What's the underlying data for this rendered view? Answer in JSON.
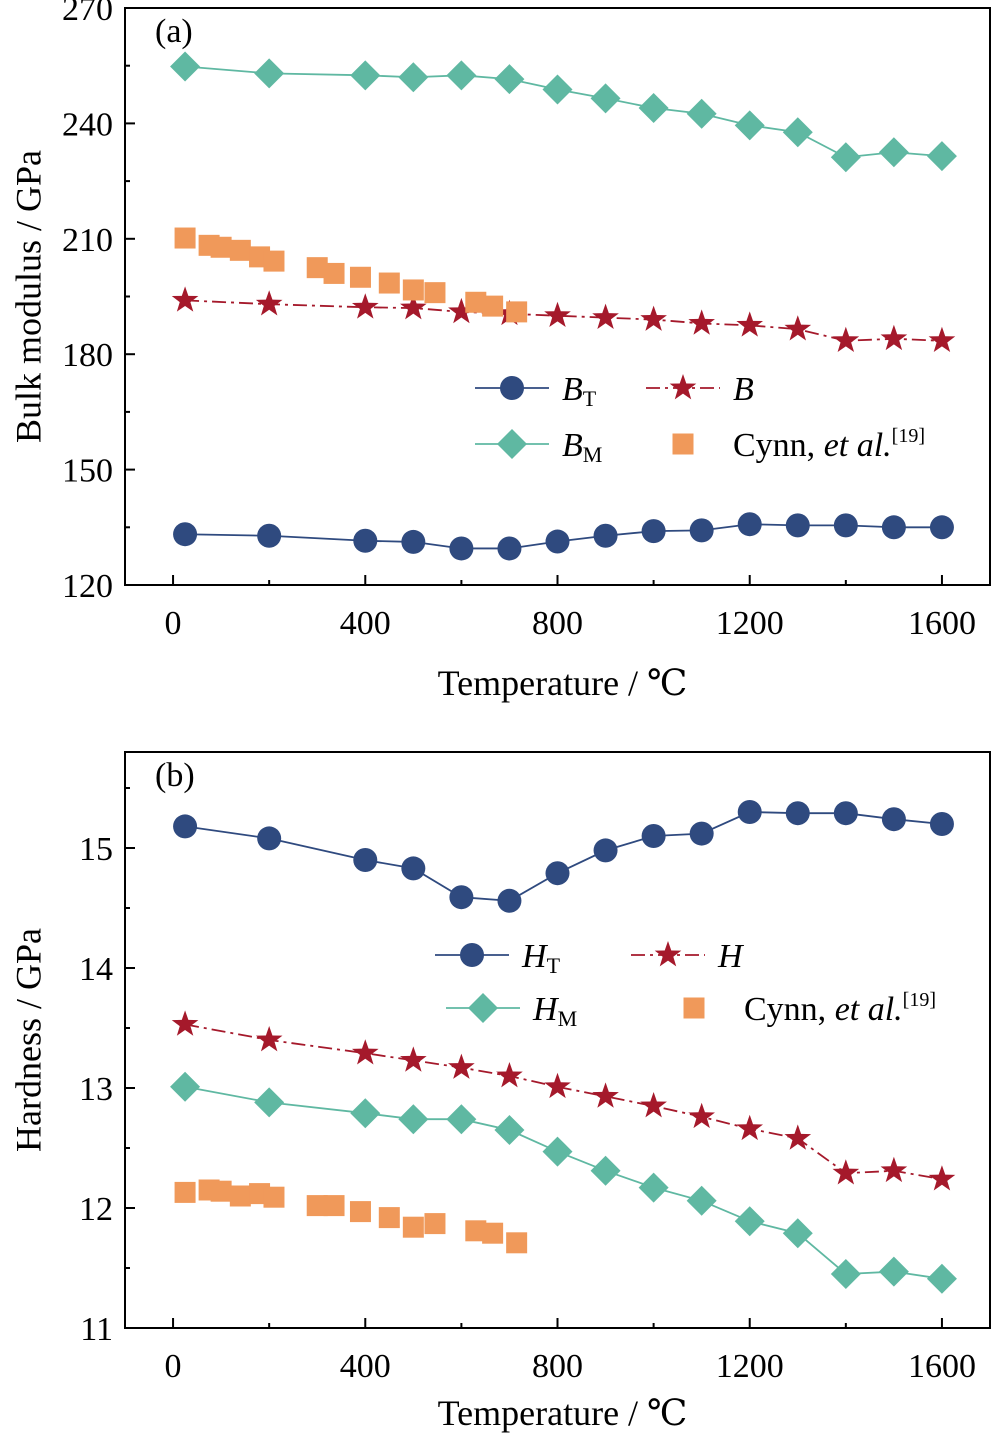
{
  "colors": {
    "BT": "#2f4a7f",
    "B": "#a5192b",
    "BM": "#5fb8a2",
    "cynn": "#f0995a",
    "axis": "#000000"
  },
  "chart_data": [
    {
      "type": "line",
      "panel_label": "(a)",
      "xlabel": "Temperature / ℃",
      "ylabel": "Bulk modulus / GPa",
      "xlim": [
        -100,
        1700
      ],
      "ylim": [
        120,
        270
      ],
      "xticks": [
        0,
        400,
        800,
        1200,
        1600
      ],
      "yticks": [
        120,
        150,
        180,
        210,
        240,
        270
      ],
      "legend_placement": "center-right",
      "series": [
        {
          "key": "BT",
          "marker": "circle",
          "line": "solid",
          "color_key": "BT",
          "legend": {
            "main": "B",
            "sub": "T",
            "italic": true
          },
          "x": [
            25,
            200,
            400,
            500,
            600,
            700,
            800,
            900,
            1000,
            1100,
            1200,
            1300,
            1400,
            1500,
            1600
          ],
          "y": [
            133.2,
            132.8,
            131.5,
            131.2,
            129.5,
            129.5,
            131.3,
            132.8,
            134,
            134.2,
            135.8,
            135.5,
            135.5,
            135,
            135
          ]
        },
        {
          "key": "B",
          "marker": "star",
          "line": "dashdot",
          "color_key": "B",
          "legend": {
            "main": "B",
            "sub": "",
            "italic": true
          },
          "x": [
            25,
            200,
            400,
            500,
            600,
            700,
            800,
            900,
            1000,
            1100,
            1200,
            1300,
            1400,
            1500,
            1600
          ],
          "y": [
            194,
            193,
            192.2,
            192,
            191,
            190.5,
            190,
            189.5,
            189,
            188,
            187.5,
            186.5,
            183.5,
            184,
            183.5
          ]
        },
        {
          "key": "BM",
          "marker": "diamond",
          "line": "solid",
          "color_key": "BM",
          "legend": {
            "main": "B",
            "sub": "M",
            "italic": true
          },
          "x": [
            25,
            200,
            400,
            500,
            600,
            700,
            800,
            900,
            1000,
            1100,
            1200,
            1300,
            1400,
            1500,
            1600
          ],
          "y": [
            254.8,
            253,
            252.5,
            252,
            252.5,
            251.5,
            248.8,
            246.5,
            244,
            242.5,
            239.5,
            237.7,
            231.2,
            232.5,
            231.5
          ]
        },
        {
          "key": "cynn",
          "marker": "square",
          "line": "none",
          "color_key": "cynn",
          "legend": {
            "main": "Cynn, ",
            "italic_part": "et al.",
            "sup": "[19]"
          },
          "x": [
            25,
            75,
            100,
            140,
            180,
            210,
            300,
            335,
            390,
            450,
            500,
            545,
            630,
            665,
            715
          ],
          "y": [
            210.2,
            208.3,
            207.8,
            207,
            205.3,
            204.2,
            202.5,
            201,
            200,
            198.5,
            196.7,
            196,
            193.5,
            192.5,
            191
          ]
        }
      ]
    },
    {
      "type": "line",
      "panel_label": "(b)",
      "xlabel": "Temperature / ℃",
      "ylabel": "Hardness / GPa",
      "xlim": [
        -100,
        1700
      ],
      "ylim": [
        11,
        15.8
      ],
      "xticks": [
        0,
        400,
        800,
        1200,
        1600
      ],
      "yticks": [
        11,
        12,
        13,
        14,
        15
      ],
      "legend_placement": "center-right",
      "series": [
        {
          "key": "HT",
          "marker": "circle",
          "line": "solid",
          "color_key": "BT",
          "legend": {
            "main": "H",
            "sub": "T",
            "italic": true
          },
          "x": [
            25,
            200,
            400,
            500,
            600,
            700,
            800,
            900,
            1000,
            1100,
            1200,
            1300,
            1400,
            1500,
            1600
          ],
          "y": [
            15.18,
            15.08,
            14.9,
            14.83,
            14.59,
            14.56,
            14.79,
            14.98,
            15.1,
            15.12,
            15.3,
            15.29,
            15.29,
            15.24,
            15.2
          ]
        },
        {
          "key": "H",
          "marker": "star",
          "line": "dashdot",
          "color_key": "B",
          "legend": {
            "main": "H",
            "sub": "",
            "italic": true
          },
          "x": [
            25,
            200,
            400,
            500,
            600,
            700,
            800,
            900,
            1000,
            1100,
            1200,
            1300,
            1400,
            1500,
            1600
          ],
          "y": [
            13.53,
            13.4,
            13.29,
            13.23,
            13.17,
            13.1,
            13.01,
            12.93,
            12.85,
            12.76,
            12.66,
            12.58,
            12.29,
            12.31,
            12.24
          ]
        },
        {
          "key": "HM",
          "marker": "diamond",
          "line": "solid",
          "color_key": "BM",
          "legend": {
            "main": "H",
            "sub": "M",
            "italic": true
          },
          "x": [
            25,
            200,
            400,
            500,
            600,
            700,
            800,
            900,
            1000,
            1100,
            1200,
            1300,
            1400,
            1500,
            1600
          ],
          "y": [
            13.01,
            12.88,
            12.79,
            12.74,
            12.74,
            12.65,
            12.47,
            12.31,
            12.17,
            12.06,
            11.89,
            11.79,
            11.45,
            11.47,
            11.41
          ]
        },
        {
          "key": "cynn",
          "marker": "square",
          "line": "none",
          "color_key": "cynn",
          "legend": {
            "main": "Cynn, ",
            "italic_part": "et al.",
            "sup": "[19]"
          },
          "x": [
            25,
            75,
            100,
            140,
            180,
            210,
            300,
            335,
            390,
            450,
            500,
            545,
            630,
            665,
            715
          ],
          "y": [
            12.13,
            12.15,
            12.14,
            12.1,
            12.12,
            12.09,
            12.02,
            12.02,
            11.97,
            11.92,
            11.84,
            11.87,
            11.81,
            11.79,
            11.71
          ]
        }
      ]
    }
  ]
}
